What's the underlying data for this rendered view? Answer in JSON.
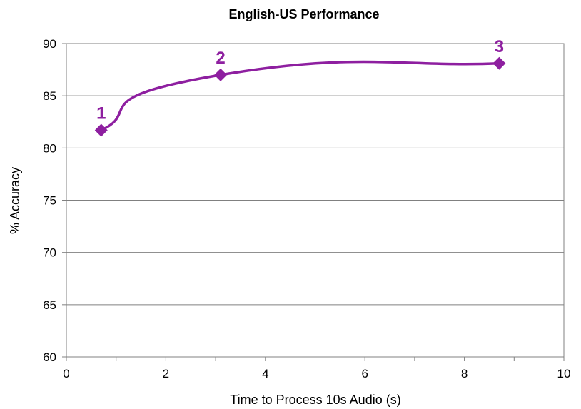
{
  "chart_data": {
    "type": "line",
    "title": "English-US Performance",
    "xlabel": "Time to Process 10s Audio (s)",
    "ylabel": "% Accuracy",
    "xlim": [
      0,
      10
    ],
    "ylim": [
      60,
      90
    ],
    "xticks": [
      "0",
      "2",
      "4",
      "6",
      "8",
      "10"
    ],
    "yticks": [
      "60",
      "65",
      "70",
      "75",
      "80",
      "85",
      "90"
    ],
    "grid": "horizontal",
    "legend": "none",
    "series": [
      {
        "color": "#8E1FA0",
        "marker": "diamond",
        "smooth": true,
        "points": [
          {
            "x": 0.7,
            "y": 81.7,
            "label": "1"
          },
          {
            "x": 3.1,
            "y": 87.0,
            "label": "2"
          },
          {
            "x": 8.7,
            "y": 88.1,
            "label": "3"
          }
        ]
      }
    ]
  }
}
